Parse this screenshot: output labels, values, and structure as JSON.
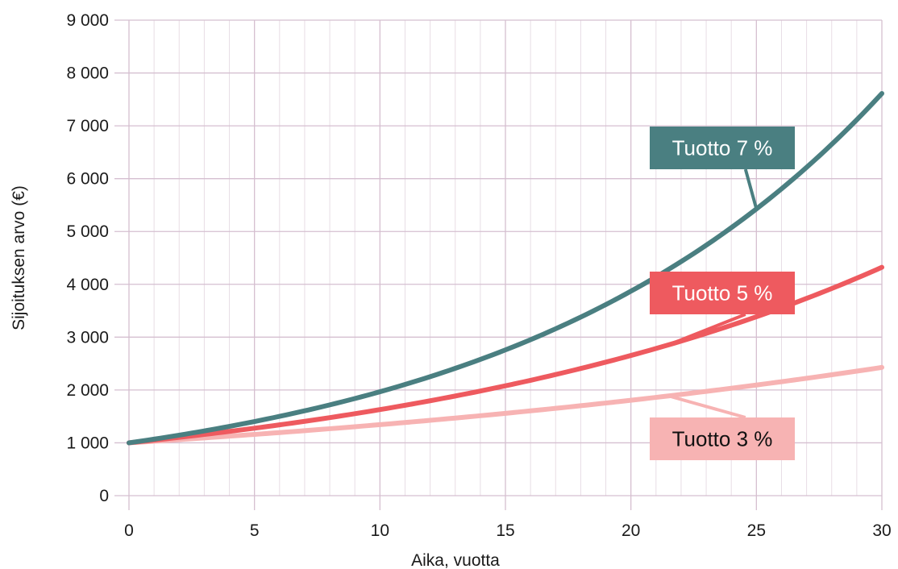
{
  "chart_data": {
    "type": "line",
    "xlabel": "Aika, vuotta",
    "ylabel": "Sijoituksen arvo (€)",
    "xlim": [
      0,
      30
    ],
    "ylim": [
      0,
      9000
    ],
    "x_ticks": [
      0,
      5,
      10,
      15,
      20,
      25,
      30
    ],
    "x_tick_labels": [
      "0",
      "5",
      "10",
      "15",
      "20",
      "25",
      "30"
    ],
    "y_ticks": [
      0,
      1000,
      2000,
      3000,
      4000,
      5000,
      6000,
      7000,
      8000,
      9000
    ],
    "y_tick_labels": [
      "0",
      "1 000",
      "2 000",
      "3 000",
      "4 000",
      "5 000",
      "6 000",
      "7 000",
      "8 000",
      "9 000"
    ],
    "grid": true,
    "x": [
      0,
      2,
      4,
      6,
      8,
      10,
      12,
      14,
      16,
      18,
      20,
      22,
      24,
      26,
      28,
      30
    ],
    "series": [
      {
        "name": "Tuotto 7 %",
        "color": "#4a7f81",
        "label_bg": "#4a7f81",
        "label_text_color": "#ffffff",
        "label_anchor_x": 25,
        "values": [
          1000,
          1145,
          1311,
          1501,
          1718,
          1967,
          2252,
          2579,
          2952,
          3380,
          3870,
          4430,
          5072,
          5807,
          6649,
          7612
        ]
      },
      {
        "name": "Tuotto 5 %",
        "color": "#ee5a5f",
        "label_bg": "#ee5a5f",
        "label_text_color": "#ffffff",
        "label_anchor_x": 21.5,
        "values": [
          1000,
          1103,
          1216,
          1340,
          1477,
          1629,
          1796,
          1980,
          2183,
          2407,
          2653,
          2925,
          3225,
          3556,
          3920,
          4322
        ]
      },
      {
        "name": "Tuotto 3 %",
        "color": "#f7b3b3",
        "label_bg": "#f7b3b3",
        "label_text_color": "#111111",
        "label_anchor_x": 21.5,
        "values": [
          1000,
          1061,
          1126,
          1194,
          1267,
          1344,
          1426,
          1513,
          1605,
          1702,
          1806,
          1916,
          2033,
          2157,
          2288,
          2427
        ]
      }
    ]
  }
}
